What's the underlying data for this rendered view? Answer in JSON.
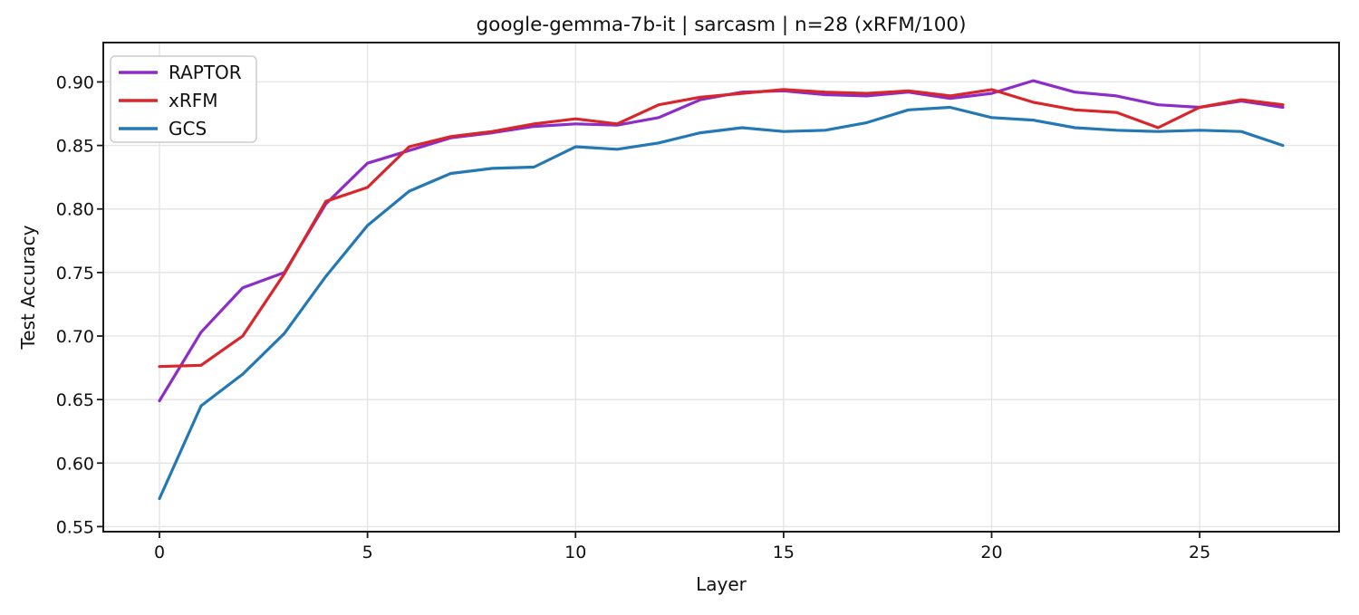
{
  "chart_data": {
    "type": "line",
    "title": "google-gemma-7b-it | sarcasm | n=28 (xRFM/100)",
    "xlabel": "Layer",
    "ylabel": "Test Accuracy",
    "x": [
      0,
      1,
      2,
      3,
      4,
      5,
      6,
      7,
      8,
      9,
      10,
      11,
      12,
      13,
      14,
      15,
      16,
      17,
      18,
      19,
      20,
      21,
      22,
      23,
      24,
      25,
      26,
      27
    ],
    "series": [
      {
        "name": "RAPTOR",
        "color": "#8c2dc8",
        "values": [
          0.649,
          0.703,
          0.738,
          0.75,
          0.804,
          0.836,
          0.846,
          0.856,
          0.86,
          0.865,
          0.867,
          0.866,
          0.872,
          0.886,
          0.892,
          0.893,
          0.89,
          0.889,
          0.892,
          0.887,
          0.891,
          0.901,
          0.892,
          0.889,
          0.882,
          0.88,
          0.885,
          0.88
        ]
      },
      {
        "name": "xRFM",
        "color": "#d9262b",
        "values": [
          0.676,
          0.677,
          0.7,
          0.749,
          0.806,
          0.817,
          0.849,
          0.857,
          0.861,
          0.867,
          0.871,
          0.867,
          0.882,
          0.888,
          0.891,
          0.894,
          0.892,
          0.891,
          0.893,
          0.889,
          0.894,
          0.884,
          0.878,
          0.876,
          0.864,
          0.88,
          0.886,
          0.882
        ]
      },
      {
        "name": "GCS",
        "color": "#2478b4",
        "values": [
          0.572,
          0.645,
          0.67,
          0.702,
          0.747,
          0.787,
          0.814,
          0.828,
          0.832,
          0.833,
          0.849,
          0.847,
          0.852,
          0.86,
          0.864,
          0.861,
          0.862,
          0.868,
          0.878,
          0.88,
          0.872,
          0.87,
          0.864,
          0.862,
          0.861,
          0.862,
          0.861,
          0.85
        ]
      }
    ],
    "x_ticks": [
      0,
      5,
      10,
      15,
      20,
      25
    ],
    "y_ticks": [
      0.55,
      0.6,
      0.65,
      0.7,
      0.75,
      0.8,
      0.85,
      0.9
    ],
    "xlim": [
      -1.35,
      28.35
    ],
    "ylim": [
      0.546,
      0.931
    ],
    "grid": true,
    "legend_position": "upper left",
    "colors": {
      "grid": "#e5e5e5",
      "spine": "#1a1a1a",
      "legend_border": "#cccccc",
      "legend_bg": "#ffffff"
    }
  }
}
